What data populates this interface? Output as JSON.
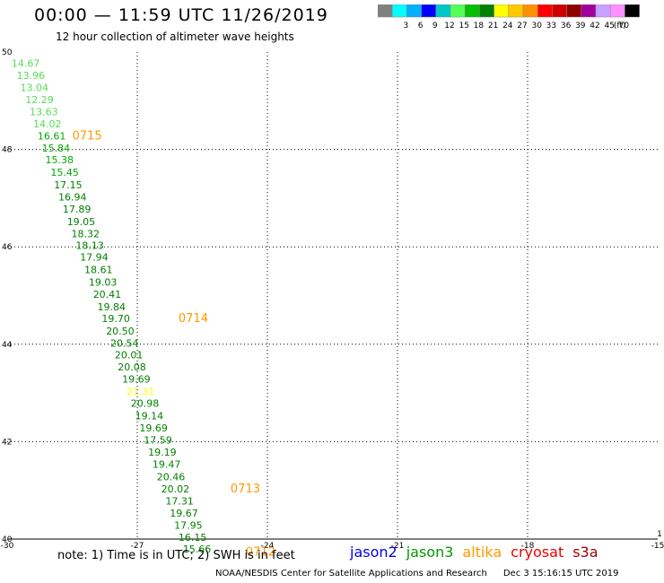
{
  "header": {
    "title": "00:00 — 11:59 UTC 11/26/2019",
    "subtitle": "12 hour collection of altimeter wave heights"
  },
  "colorbar": {
    "bins": [
      {
        "label": "",
        "color": "#808080"
      },
      {
        "label": "3",
        "color": "#00ffff"
      },
      {
        "label": "6",
        "color": "#00b0ff"
      },
      {
        "label": "9",
        "color": "#0000ff"
      },
      {
        "label": "12",
        "color": "#00c8c8"
      },
      {
        "label": "15",
        "color": "#55ff55"
      },
      {
        "label": "18",
        "color": "#00c000"
      },
      {
        "label": "21",
        "color": "#008000"
      },
      {
        "label": "24",
        "color": "#ffff00"
      },
      {
        "label": "27",
        "color": "#ffc800"
      },
      {
        "label": "30",
        "color": "#ff9000"
      },
      {
        "label": "33",
        "color": "#ff0000"
      },
      {
        "label": "36",
        "color": "#d00000"
      },
      {
        "label": "39",
        "color": "#900000"
      },
      {
        "label": "42",
        "color": "#a000a0"
      },
      {
        "label": "45",
        "color": "#c8a0ff"
      },
      {
        "label": "70",
        "color": "#ff90ff"
      },
      {
        "label": "",
        "color": "#000000"
      }
    ],
    "unit": "(ft)"
  },
  "chart_data": {
    "type": "scatter",
    "xlim": [
      -30,
      -15
    ],
    "ylim": [
      40,
      50
    ],
    "x_ticks": [
      "-30",
      "-27",
      "-24",
      "-21",
      "-18",
      "-15"
    ],
    "y_ticks": [
      "40",
      "42",
      "44",
      "46",
      "48",
      "50"
    ],
    "corner_label": "1",
    "grid": true,
    "points": [
      {
        "lon": -29.9,
        "lat": 49.7,
        "swh": "14.67",
        "color": "#55dd55"
      },
      {
        "lon": -29.78,
        "lat": 49.45,
        "swh": "13.96",
        "color": "#55dd55"
      },
      {
        "lon": -29.7,
        "lat": 49.2,
        "swh": "13.04",
        "color": "#55dd55"
      },
      {
        "lon": -29.58,
        "lat": 48.95,
        "swh": "12.29",
        "color": "#55dd55"
      },
      {
        "lon": -29.48,
        "lat": 48.7,
        "swh": "13.63",
        "color": "#55dd55"
      },
      {
        "lon": -29.4,
        "lat": 48.45,
        "swh": "14.02",
        "color": "#55dd55"
      },
      {
        "lon": -29.3,
        "lat": 48.2,
        "swh": "16.61",
        "color": "#00aa00"
      },
      {
        "lon": -29.2,
        "lat": 47.96,
        "swh": "15.84",
        "color": "#00aa00"
      },
      {
        "lon": -29.12,
        "lat": 47.72,
        "swh": "15.38",
        "color": "#00aa00"
      },
      {
        "lon": -29.0,
        "lat": 47.46,
        "swh": "15.45",
        "color": "#00aa00"
      },
      {
        "lon": -28.92,
        "lat": 47.2,
        "swh": "17.15",
        "color": "#008000"
      },
      {
        "lon": -28.82,
        "lat": 46.95,
        "swh": "16.94",
        "color": "#008000"
      },
      {
        "lon": -28.72,
        "lat": 46.7,
        "swh": "17.89",
        "color": "#008000"
      },
      {
        "lon": -28.62,
        "lat": 46.45,
        "swh": "19.05",
        "color": "#008000"
      },
      {
        "lon": -28.52,
        "lat": 46.2,
        "swh": "18.32",
        "color": "#008000"
      },
      {
        "lon": -28.42,
        "lat": 45.96,
        "swh": "18.13",
        "color": "#008000"
      },
      {
        "lon": -28.32,
        "lat": 45.72,
        "swh": "17.94",
        "color": "#008000"
      },
      {
        "lon": -28.22,
        "lat": 45.46,
        "swh": "18.61",
        "color": "#008000"
      },
      {
        "lon": -28.12,
        "lat": 45.2,
        "swh": "19.03",
        "color": "#008000"
      },
      {
        "lon": -28.02,
        "lat": 44.95,
        "swh": "20.41",
        "color": "#008000"
      },
      {
        "lon": -27.92,
        "lat": 44.7,
        "swh": "19.84",
        "color": "#008000"
      },
      {
        "lon": -27.82,
        "lat": 44.46,
        "swh": "19.70",
        "color": "#008000"
      },
      {
        "lon": -27.72,
        "lat": 44.2,
        "swh": "20.50",
        "color": "#008000"
      },
      {
        "lon": -27.62,
        "lat": 43.95,
        "swh": "20.54",
        "color": "#008000"
      },
      {
        "lon": -27.52,
        "lat": 43.71,
        "swh": "20.01",
        "color": "#008000"
      },
      {
        "lon": -27.45,
        "lat": 43.46,
        "swh": "20.08",
        "color": "#008000"
      },
      {
        "lon": -27.35,
        "lat": 43.21,
        "swh": "19.69",
        "color": "#008000"
      },
      {
        "lon": -27.25,
        "lat": 42.96,
        "swh": "21.31",
        "color": "#ffff00"
      },
      {
        "lon": -27.15,
        "lat": 42.72,
        "swh": "20.98",
        "color": "#008000"
      },
      {
        "lon": -27.05,
        "lat": 42.46,
        "swh": "19.14",
        "color": "#008000"
      },
      {
        "lon": -26.95,
        "lat": 42.21,
        "swh": "19.69",
        "color": "#008000"
      },
      {
        "lon": -26.85,
        "lat": 41.96,
        "swh": "17.59",
        "color": "#008000"
      },
      {
        "lon": -26.75,
        "lat": 41.71,
        "swh": "19.19",
        "color": "#008000"
      },
      {
        "lon": -26.65,
        "lat": 41.46,
        "swh": "19.47",
        "color": "#008000"
      },
      {
        "lon": -26.55,
        "lat": 41.21,
        "swh": "20.46",
        "color": "#008000"
      },
      {
        "lon": -26.45,
        "lat": 40.96,
        "swh": "20.02",
        "color": "#008000"
      },
      {
        "lon": -26.35,
        "lat": 40.71,
        "swh": "17.31",
        "color": "#008000"
      },
      {
        "lon": -26.25,
        "lat": 40.46,
        "swh": "19.67",
        "color": "#008000"
      },
      {
        "lon": -26.15,
        "lat": 40.21,
        "swh": "17.95",
        "color": "#008000"
      },
      {
        "lon": -26.05,
        "lat": 39.96,
        "swh": "16.15",
        "color": "#008000"
      },
      {
        "lon": -25.95,
        "lat": 39.72,
        "swh": "15.66",
        "color": "#008000"
      }
    ],
    "time_marks": [
      {
        "lon": -28.5,
        "lat": 48.2,
        "label": "0715",
        "color": "#ff9900"
      },
      {
        "lon": -26.05,
        "lat": 44.46,
        "label": "0714",
        "color": "#ff9900"
      },
      {
        "lon": -24.85,
        "lat": 40.96,
        "label": "0713",
        "color": "#ff9900"
      },
      {
        "lon": -24.5,
        "lat": 39.66,
        "label": "0712",
        "color": "#ff9900"
      }
    ]
  },
  "footer": {
    "note": "note:  1) Time is in UTC;  2) SWH is in feet",
    "satellites": [
      {
        "name": "jason2",
        "color": "#0000ee"
      },
      {
        "name": "jason3",
        "color": "#009900"
      },
      {
        "name": "altika",
        "color": "#ff9900"
      },
      {
        "name": "cryosat",
        "color": "#ee0000"
      },
      {
        "name": "s3a",
        "color": "#990000"
      }
    ],
    "credit": "NOAA/NESDIS Center for Satellite Applications and Research",
    "timestamp": "Dec  3 15:16:15 UTC 2019"
  }
}
